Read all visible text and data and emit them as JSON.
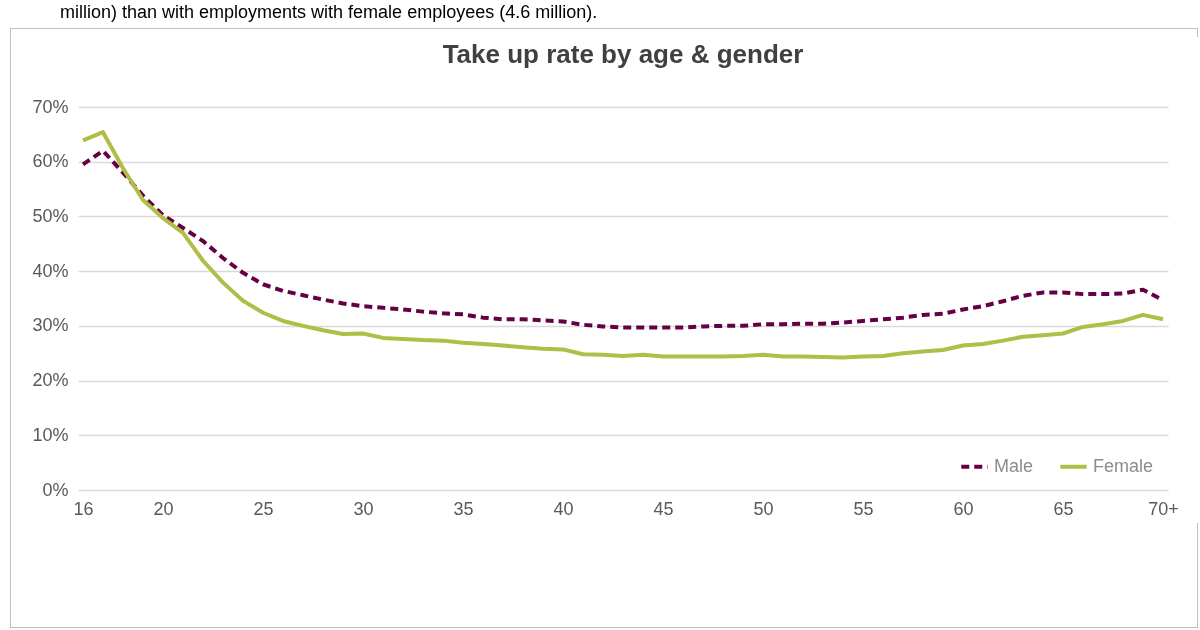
{
  "chart_data": {
    "type": "line",
    "title": "Take up rate by age & gender",
    "annotations": [
      "million) than with employments with female employees (4.6 million)."
    ],
    "categories": [
      "16",
      null,
      null,
      null,
      "20",
      null,
      null,
      null,
      null,
      "25",
      null,
      null,
      null,
      null,
      "30",
      null,
      null,
      null,
      null,
      "35",
      null,
      null,
      null,
      null,
      "40",
      null,
      null,
      null,
      null,
      "45",
      null,
      null,
      null,
      null,
      "50",
      null,
      null,
      null,
      null,
      "55",
      null,
      null,
      null,
      null,
      "60",
      null,
      null,
      null,
      null,
      "65",
      null,
      null,
      null,
      null,
      "70+"
    ],
    "series": [
      {
        "name": "Male",
        "color": "#660045",
        "line_style": "dashed",
        "values": [
          59.5,
          62,
          58,
          53.8,
          50.2,
          47.9,
          45.5,
          42.4,
          39.7,
          37.6,
          36.4,
          35.6,
          34.8,
          34.1,
          33.6,
          33.3,
          33.0,
          32.6,
          32.3,
          32.1,
          31.5,
          31.2,
          31.2,
          31.0,
          30.8,
          30.2,
          29.9,
          29.7,
          29.7,
          29.7,
          29.7,
          29.9,
          30.0,
          30.0,
          30.3,
          30.3,
          30.4,
          30.4,
          30.6,
          30.9,
          31.2,
          31.5,
          32.0,
          32.2,
          33.0,
          33.6,
          34.5,
          35.5,
          36.1,
          36.1,
          35.8,
          35.8,
          35.9,
          36.6,
          34.7
        ]
      },
      {
        "name": "Female",
        "color": "#b0bd46",
        "line_style": "solid",
        "values": [
          63.9,
          65.4,
          58.8,
          53.0,
          49.7,
          47.0,
          41.9,
          37.9,
          34.6,
          32.4,
          30.9,
          30.0,
          29.2,
          28.5,
          28.6,
          27.8,
          27.6,
          27.4,
          27.3,
          26.9,
          26.7,
          26.4,
          26.1,
          25.8,
          25.7,
          24.8,
          24.7,
          24.5,
          24.7,
          24.4,
          24.4,
          24.4,
          24.4,
          24.5,
          24.7,
          24.4,
          24.4,
          24.3,
          24.2,
          24.4,
          24.5,
          25.0,
          25.3,
          25.6,
          26.4,
          26.7,
          27.3,
          28.0,
          28.3,
          28.6,
          29.8,
          30.3,
          30.9,
          32.0,
          31.2
        ]
      }
    ],
    "ylim": [
      0,
      70
    ],
    "yticks": [
      {
        "value": 0,
        "label": "0%"
      },
      {
        "value": 10,
        "label": "10%"
      },
      {
        "value": 20,
        "label": "20%"
      },
      {
        "value": 30,
        "label": "30%"
      },
      {
        "value": 40,
        "label": "40%"
      },
      {
        "value": 50,
        "label": "50%"
      },
      {
        "value": 60,
        "label": "60%"
      },
      {
        "value": 70,
        "label": "70%"
      }
    ],
    "grid": "y",
    "legend": "bottom right"
  }
}
